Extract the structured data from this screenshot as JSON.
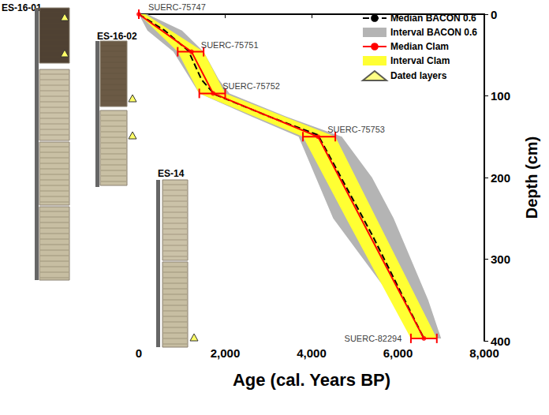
{
  "chart_data": {
    "type": "line",
    "xlabel": "Age (cal. Years BP)",
    "ylabel": "Depth (cm)",
    "xlim": [
      0,
      8000
    ],
    "xticks": [
      0,
      2000,
      4000,
      6000,
      8000
    ],
    "ylim": [
      0,
      400
    ],
    "yticks": [
      0,
      100,
      200,
      300,
      400
    ],
    "legend": "top-right",
    "series": [
      {
        "name": "Median BACON 0.6",
        "type": "line",
        "color": "#000000",
        "line_style": "dashed",
        "x": [
          0,
          600,
          1150,
          1450,
          1750,
          3000,
          4150,
          5400,
          6600
        ],
        "values": [
          0,
          20,
          45,
          80,
          98,
          125,
          148,
          270,
          397
        ]
      },
      {
        "name": "Interval BACON 0.6",
        "type": "band",
        "color": "#b4b4b4",
        "values": [
          0,
          20,
          46,
          80,
          97,
          125,
          150,
          200,
          250,
          300,
          350,
          397
        ],
        "lower": [
          0,
          200,
          800,
          1200,
          1400,
          2600,
          3700,
          4100,
          4500,
          5200,
          5900,
          6400
        ],
        "upper": [
          200,
          1000,
          1500,
          1850,
          2100,
          3400,
          4700,
          5400,
          5900,
          6300,
          6700,
          7000
        ]
      },
      {
        "name": "Median Clam",
        "type": "line",
        "color": "#ff0000",
        "line_style": "solid",
        "x": [
          0,
          1220,
          1720,
          4150,
          6600
        ],
        "values": [
          0,
          46,
          97,
          150,
          397
        ]
      },
      {
        "name": "Interval Clam",
        "type": "band",
        "color": "#ffff33",
        "values": [
          0,
          46,
          97,
          150,
          250,
          397
        ],
        "lower": [
          0,
          900,
          1400,
          3800,
          4800,
          6300
        ],
        "upper": [
          150,
          1500,
          2000,
          4550,
          5500,
          6900
        ]
      },
      {
        "name": "Dated layers",
        "type": "marker",
        "color": "#ffff66",
        "marker": "triangle"
      }
    ],
    "dated_samples": {
      "labels": [
        "SUERC-75747",
        "SUERC-75751",
        "SUERC-75752",
        "SUERC-75753",
        "SUERC-82294"
      ],
      "age": [
        0,
        1220,
        1720,
        4150,
        6600
      ],
      "depth": [
        0,
        46,
        97,
        150,
        397
      ],
      "age_lower": [
        0,
        900,
        1400,
        3800,
        6300
      ],
      "age_upper": [
        0,
        1500,
        2000,
        4550,
        6900
      ],
      "color": "#ff0000"
    },
    "cores": [
      "ES-16-01",
      "ES-16-02",
      "ES-14"
    ]
  }
}
